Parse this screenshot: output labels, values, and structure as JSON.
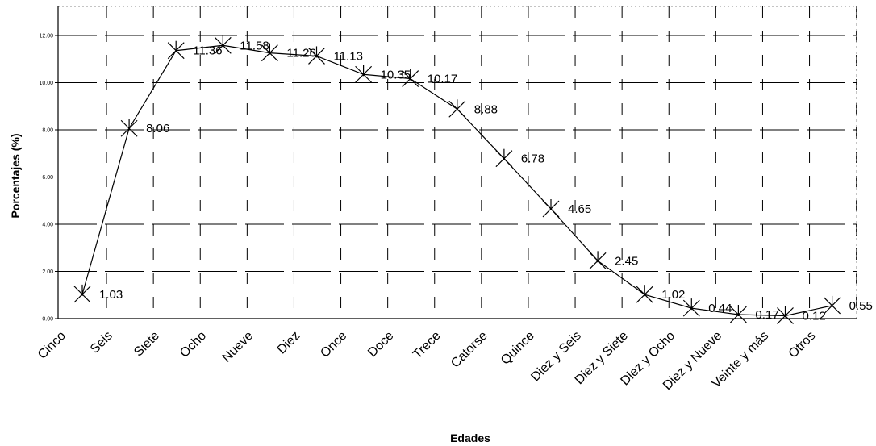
{
  "chart_data": {
    "type": "line",
    "xlabel": "Edades",
    "ylabel": "Porcentajes (%)",
    "categories": [
      "Cinco",
      "Seis",
      "Siete",
      "Ocho",
      "Nueve",
      "Diez",
      "Once",
      "Doce",
      "Trece",
      "Catorse",
      "Quince",
      "Diez y Seis",
      "Diez y Siete",
      "Diez y Ocho",
      "Diez y Nueve",
      "Veinte y más",
      "Otros"
    ],
    "values": [
      1.03,
      8.06,
      11.36,
      11.58,
      11.26,
      11.13,
      10.35,
      10.17,
      8.88,
      6.78,
      4.65,
      2.45,
      1.02,
      0.44,
      0.17,
      0.12,
      0.55
    ],
    "data_labels": [
      "1.03",
      "8.06",
      "11.36",
      "11.58",
      "11.26",
      "11.13",
      "10.35",
      "10.17",
      "8.88",
      "6.78",
      "4.65",
      "2.45",
      "1.02",
      "0.44",
      "0.17",
      "0.12",
      "0.55"
    ],
    "yticks": [
      "0.00",
      "2.00",
      "4.00",
      "6.00",
      "8.00",
      "10.00",
      "12.00"
    ],
    "ylim": [
      0,
      12.3
    ],
    "grid": true,
    "marker": "asterisk",
    "colors": {
      "line": "#000000",
      "grid": "#000000",
      "background": "#ffffff"
    }
  }
}
